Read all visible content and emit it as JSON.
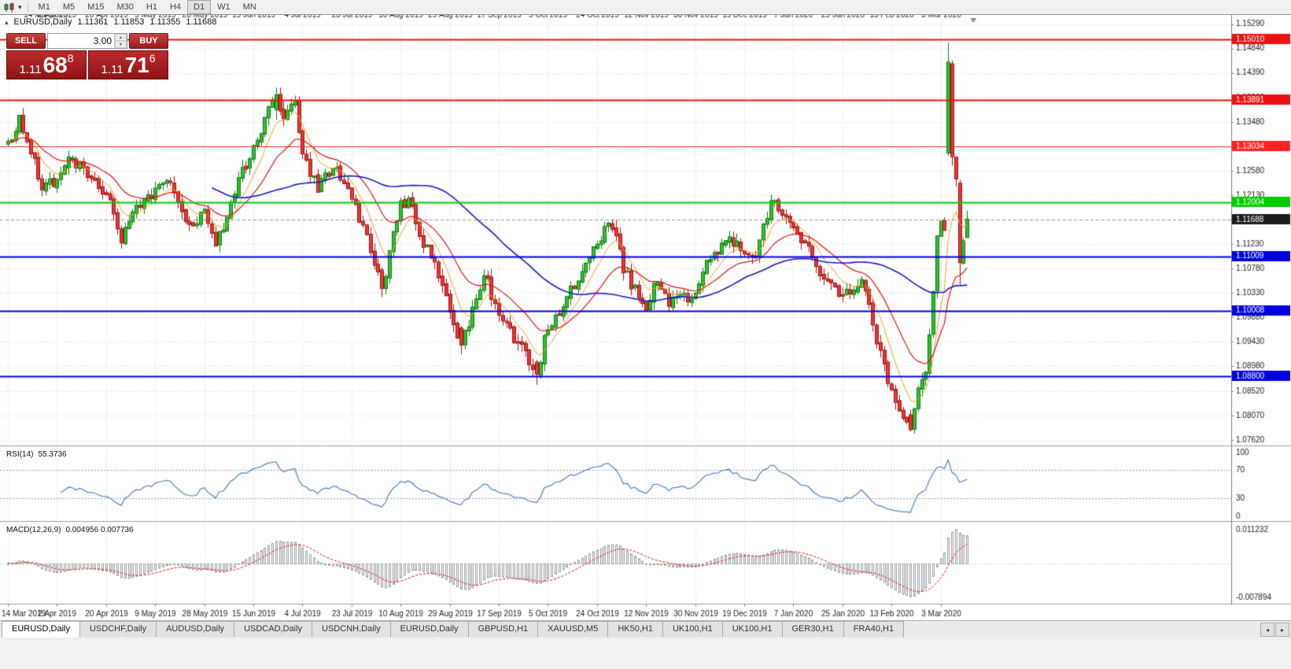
{
  "toolbar": {
    "timeframes": [
      {
        "label": "M1",
        "active": false
      },
      {
        "label": "M5",
        "active": false
      },
      {
        "label": "M15",
        "active": false
      },
      {
        "label": "M30",
        "active": false
      },
      {
        "label": "H1",
        "active": false
      },
      {
        "label": "H4",
        "active": false
      },
      {
        "label": "D1",
        "active": true
      },
      {
        "label": "W1",
        "active": false
      },
      {
        "label": "MN",
        "active": false
      }
    ]
  },
  "chart": {
    "symbol": "EURUSD,Daily",
    "open": "1.11361",
    "high": "1.11853",
    "low": "1.11355",
    "close": "1.11688"
  },
  "trade_panel": {
    "sell_label": "SELL",
    "buy_label": "BUY",
    "volume": "3.00",
    "sell_price": {
      "prefix": "1.11",
      "pips": "68",
      "fraction": "8"
    },
    "buy_price": {
      "prefix": "1.11",
      "pips": "71",
      "fraction": "6"
    }
  },
  "rsi": {
    "name": "RSI(14)",
    "value": "55.3736",
    "axis_labels": [
      "100",
      "70",
      "30",
      "0"
    ]
  },
  "macd": {
    "name": "MACD(12,26,9)",
    "values": "0.004956 0.007736",
    "axis_max": "0.011232",
    "axis_min": "-0.007894"
  },
  "tabs": [
    {
      "label": "EURUSD,Daily",
      "active": true
    },
    {
      "label": "USDCHF,Daily",
      "active": false
    },
    {
      "label": "AUDUSD,Daily",
      "active": false
    },
    {
      "label": "USDCAD,Daily",
      "active": false
    },
    {
      "label": "USDCNH,Daily",
      "active": false
    },
    {
      "label": "EURUSD,Daily",
      "active": false
    },
    {
      "label": "GBPUSD,H1",
      "active": false
    },
    {
      "label": "XAUUSD,M5",
      "active": false
    },
    {
      "label": "HK50,H1",
      "active": false
    },
    {
      "label": "UK100,H1",
      "active": false
    },
    {
      "label": "UK100,H1",
      "active": false
    },
    {
      "label": "GER30,H1",
      "active": false
    },
    {
      "label": "FRA40,H1",
      "active": false
    }
  ],
  "tab_scroll": {
    "left": "◂",
    "right": "▸"
  },
  "colors": {
    "up_fill": "#2fc12f",
    "up_border": "#0c7a0c",
    "down_fill": "#ef3434",
    "down_border": "#9c1313",
    "ma_fast": "#f0a020",
    "ma_mid": "#e41414",
    "ma_slow": "#1818c8",
    "rsi_line": "#4f81bd",
    "rsi_levels": "#9c9cc0",
    "macd_hist": "#9aa0a6",
    "macd_signal": "#e41414",
    "grid": "#d9d9d9",
    "axis_text": "#1a1a1a",
    "current_label_bg": "#1c1c1c",
    "separator": "#9a9a9a"
  },
  "chart_data": {
    "type": "candlestick",
    "symbol": "EURUSD",
    "period": "Daily",
    "bars_total": 255,
    "bars_per_label": 13,
    "x_labels": [
      "14 Mar 2019",
      "2 Apr 2019",
      "20 Apr 2019",
      "9 May 2019",
      "28 May 2019",
      "15 Jun 2019",
      "4 Jul 2019",
      "23 Jul 2019",
      "10 Aug 2019",
      "29 Aug 2019",
      "17 Sep 2019",
      "5 Oct 2019",
      "24 Oct 2019",
      "12 Nov 2019",
      "30 Nov 2019",
      "19 Dec 2019",
      "7 Jan 2020",
      "25 Jan 2020",
      "13 Feb 2020",
      "3 Mar 2020"
    ],
    "price_axis": {
      "min": 1.0755,
      "max": 1.154,
      "ticks": [
        "1.15290",
        "1.14840",
        "1.14390",
        "1.13930",
        "1.13480",
        "1.13030",
        "1.12580",
        "1.12130",
        "1.11690",
        "1.11230",
        "1.10780",
        "1.10330",
        "1.09880",
        "1.09430",
        "1.08980",
        "1.08520",
        "1.08070",
        "1.07620"
      ]
    },
    "levels": [
      {
        "price": 1.1501,
        "label": "1.15010",
        "color": "#ee1111",
        "width": 2
      },
      {
        "price": 1.13891,
        "label": "1.13891",
        "color": "#ee1111",
        "width": 2
      },
      {
        "price": 1.13034,
        "label": "1.13034",
        "color": "#ff2222",
        "width": 1
      },
      {
        "price": 1.12004,
        "label": "1.12004",
        "color": "#00cc00",
        "width": 2
      },
      {
        "price": 1.11009,
        "label": "1.11009",
        "color": "#0000dd",
        "width": 2
      },
      {
        "price": 1.10008,
        "label": "1.10008",
        "color": "#0000dd",
        "width": 2
      },
      {
        "price": 1.088,
        "label": "1.08800",
        "color": "#0000dd",
        "width": 2
      }
    ],
    "current_price": {
      "price": 1.11688,
      "label": "1.11688"
    },
    "last_bar": {
      "open": 1.11361,
      "high": 1.11853,
      "low": 1.11355,
      "close": 1.11688
    },
    "close_anchors": [
      [
        0,
        1.131
      ],
      [
        3,
        1.135
      ],
      [
        6,
        1.1295
      ],
      [
        9,
        1.1228
      ],
      [
        13,
        1.1238
      ],
      [
        17,
        1.1285
      ],
      [
        22,
        1.1238
      ],
      [
        26,
        1.1218
      ],
      [
        30,
        1.1128
      ],
      [
        34,
        1.1195
      ],
      [
        39,
        1.1218
      ],
      [
        43,
        1.1235
      ],
      [
        48,
        1.1158
      ],
      [
        52,
        1.118
      ],
      [
        55,
        1.1128
      ],
      [
        58,
        1.1175
      ],
      [
        62,
        1.1255
      ],
      [
        65,
        1.1298
      ],
      [
        68,
        1.1355
      ],
      [
        71,
        1.1398
      ],
      [
        73,
        1.136
      ],
      [
        76,
        1.1385
      ],
      [
        78,
        1.1282
      ],
      [
        82,
        1.1228
      ],
      [
        86,
        1.1268
      ],
      [
        91,
        1.1212
      ],
      [
        94,
        1.1152
      ],
      [
        97,
        1.1088
      ],
      [
        99,
        1.1042
      ],
      [
        101,
        1.1105
      ],
      [
        104,
        1.1198
      ],
      [
        106,
        1.1205
      ],
      [
        109,
        1.1142
      ],
      [
        112,
        1.1102
      ],
      [
        114,
        1.1062
      ],
      [
        117,
        1.0998
      ],
      [
        120,
        1.0938
      ],
      [
        123,
        1.1002
      ],
      [
        126,
        1.1072
      ],
      [
        129,
        1.1012
      ],
      [
        132,
        1.0968
      ],
      [
        135,
        1.0942
      ],
      [
        138,
        1.0908
      ],
      [
        140,
        1.0884
      ],
      [
        143,
        1.0975
      ],
      [
        146,
        1.0992
      ],
      [
        149,
        1.1042
      ],
      [
        152,
        1.1072
      ],
      [
        156,
        1.1132
      ],
      [
        160,
        1.1158
      ],
      [
        163,
        1.1078
      ],
      [
        166,
        1.1038
      ],
      [
        169,
        1.1012
      ],
      [
        172,
        1.1062
      ],
      [
        175,
        1.1018
      ],
      [
        178,
        1.1022
      ],
      [
        182,
        1.1028
      ],
      [
        185,
        1.1082
      ],
      [
        188,
        1.1105
      ],
      [
        191,
        1.1132
      ],
      [
        194,
        1.1122
      ],
      [
        198,
        1.1092
      ],
      [
        201,
        1.1178
      ],
      [
        203,
        1.1208
      ],
      [
        206,
        1.1168
      ],
      [
        208,
        1.1152
      ],
      [
        212,
        1.1112
      ],
      [
        216,
        1.1062
      ],
      [
        221,
        1.1022
      ],
      [
        224,
        1.1048
      ],
      [
        226,
        1.1058
      ],
      [
        230,
        1.0948
      ],
      [
        233,
        1.0872
      ],
      [
        235,
        1.0832
      ],
      [
        239,
        1.0782
      ],
      [
        241,
        1.0852
      ],
      [
        243,
        1.0888
      ],
      [
        245,
        1.1032
      ],
      [
        246,
        1.113
      ],
      [
        247,
        1.1172
      ],
      [
        248,
        1.114
      ],
      [
        249,
        1.1458
      ],
      [
        250,
        1.1285
      ],
      [
        251,
        1.124
      ],
      [
        252,
        1.109
      ],
      [
        253,
        1.113
      ],
      [
        254,
        1.11688
      ]
    ],
    "bar_overrides": {
      "71": [
        1.1372,
        1.1412,
        1.1352,
        1.1398
      ],
      "99": [
        1.1075,
        1.108,
        1.1026,
        1.1042
      ],
      "120": [
        1.0968,
        1.0972,
        1.092,
        1.0938
      ],
      "140": [
        1.0905,
        1.091,
        1.0864,
        1.0884
      ],
      "239": [
        1.0808,
        1.0818,
        1.0778,
        1.0782
      ],
      "249": [
        1.1292,
        1.1495,
        1.1286,
        1.1458
      ],
      "250": [
        1.1455,
        1.1462,
        1.1268,
        1.1285
      ],
      "252": [
        1.1235,
        1.1242,
        1.1048,
        1.109
      ],
      "254": [
        1.11361,
        1.11853,
        1.11355,
        1.11688
      ]
    },
    "moving_averages": [
      {
        "name": "fast",
        "method": "ema",
        "period": 8
      },
      {
        "name": "mid",
        "method": "ema",
        "period": 21
      },
      {
        "name": "slow",
        "method": "sma",
        "period": 55
      }
    ],
    "rsi": {
      "period": 14,
      "current": 55.3736,
      "range": [
        0,
        100
      ],
      "levels": [
        70,
        30
      ]
    },
    "macd": {
      "fast": 12,
      "slow": 26,
      "signal": 9,
      "current": 0.004956,
      "current_signal": 0.007736,
      "axis_max": 0.011232,
      "axis_min": -0.007894
    }
  }
}
